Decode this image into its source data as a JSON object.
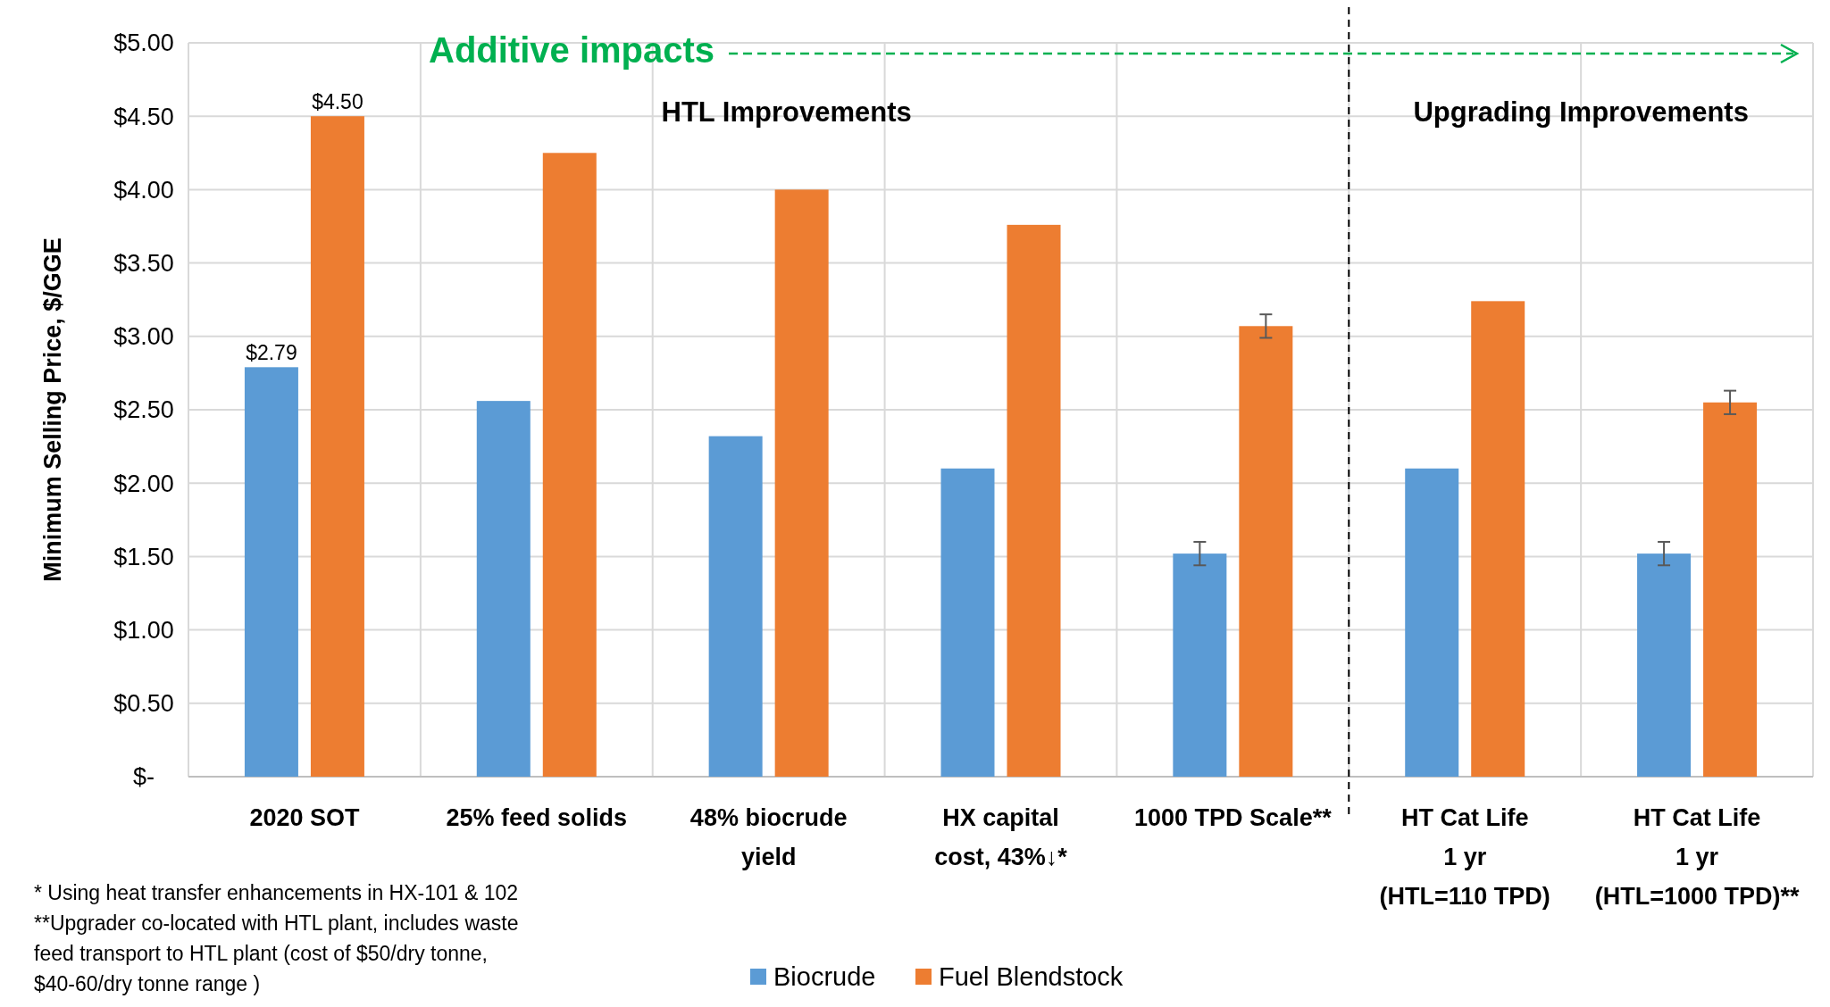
{
  "chart_data": {
    "type": "bar",
    "ylabel": "Minimum Selling Price, $/GGE",
    "categories": [
      "2020 SOT",
      "25% feed solids",
      "48% biocrude\nyield",
      "HX capital\ncost, 43%↓*",
      "1000 TPD Scale**",
      "HT Cat Life\n1 yr\n(HTL=110 TPD)",
      "HT Cat Life\n1 yr\n(HTL=1000 TPD)**"
    ],
    "series": [
      {
        "name": "Biocrude",
        "color": "#5b9bd5",
        "values": [
          2.79,
          2.56,
          2.32,
          2.1,
          1.52,
          2.1,
          1.52
        ],
        "errors": [
          null,
          null,
          null,
          null,
          [
            1.44,
            1.6
          ],
          null,
          [
            1.44,
            1.6
          ]
        ],
        "value_labels": [
          "$2.79",
          null,
          null,
          null,
          null,
          null,
          null
        ]
      },
      {
        "name": "Fuel Blendstock",
        "color": "#ed7d31",
        "values": [
          4.5,
          4.25,
          4.0,
          3.76,
          3.07,
          3.24,
          2.55
        ],
        "errors": [
          null,
          null,
          null,
          null,
          [
            2.99,
            3.15
          ],
          null,
          [
            2.47,
            2.63
          ]
        ],
        "value_labels": [
          "$4.50",
          null,
          null,
          null,
          null,
          null,
          null
        ]
      }
    ],
    "ylim": [
      0,
      5
    ],
    "yticks": [
      {
        "value": 0,
        "label": "$-"
      },
      {
        "value": 0.5,
        "label": "$0.50"
      },
      {
        "value": 1,
        "label": "$1.00"
      },
      {
        "value": 1.5,
        "label": "$1.50"
      },
      {
        "value": 2,
        "label": "$2.00"
      },
      {
        "value": 2.5,
        "label": "$2.50"
      },
      {
        "value": 3,
        "label": "$3.00"
      },
      {
        "value": 3.5,
        "label": "$3.50"
      },
      {
        "value": 4,
        "label": "$4.00"
      },
      {
        "value": 4.5,
        "label": "$4.50"
      },
      {
        "value": 5,
        "label": "$5.00"
      }
    ],
    "grid": true,
    "legend": "bottom",
    "annotations": [
      "Additive impacts",
      "HTL Improvements",
      "Upgrading Improvements",
      "*  Using heat transfer enhancements in HX-101 & 102",
      "**Upgrader co-located with HTL plant, includes waste\nfeed transport to HTL plant (cost of $50/dry tonne,\n$40-60/dry tonne range )"
    ]
  }
}
